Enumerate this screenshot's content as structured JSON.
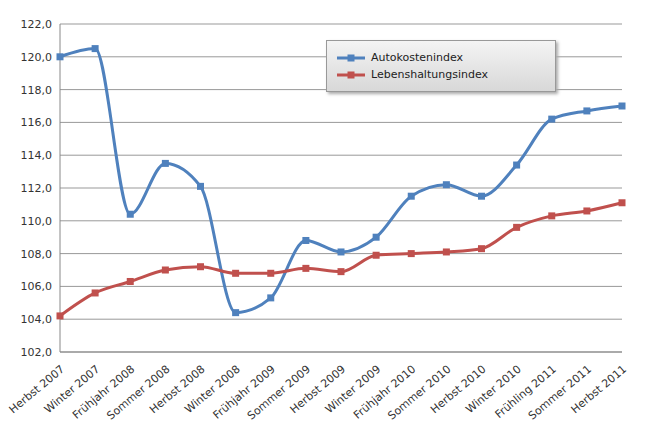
{
  "chart_data": {
    "type": "line",
    "categories": [
      "Herbst 2007",
      "Winter 2007",
      "Frühjahr 2008",
      "Sommer 2008",
      "Herbst 2008",
      "Winter 2008",
      "Frühjahr 2009",
      "Sommer 2009",
      "Herbst 2009",
      "Winter 2009",
      "Frühjahr 2010",
      "Sommer 2010",
      "Herbst 2010",
      "Winter 2010",
      "Frühling 2011",
      "Sommer 2011",
      "Herbst 2011"
    ],
    "series": [
      {
        "name": "Autokostenindex",
        "color": "#4f81bd",
        "values": [
          120.0,
          120.5,
          110.4,
          113.5,
          112.1,
          104.4,
          105.3,
          108.8,
          108.1,
          109.0,
          111.5,
          112.2,
          111.5,
          113.4,
          116.2,
          116.7,
          117.0
        ]
      },
      {
        "name": "Lebenshaltungsindex",
        "color": "#c0504d",
        "values": [
          104.2,
          105.6,
          106.3,
          107.0,
          107.2,
          106.8,
          106.8,
          107.1,
          106.9,
          107.9,
          108.0,
          108.1,
          108.3,
          109.6,
          110.3,
          110.6,
          111.1
        ]
      }
    ],
    "ylim": [
      102,
      122
    ],
    "yticks": [
      {
        "value": 102,
        "label": "102,0"
      },
      {
        "value": 104,
        "label": "104,0"
      },
      {
        "value": 106,
        "label": "106,0"
      },
      {
        "value": 108,
        "label": "108,0"
      },
      {
        "value": 110,
        "label": "110,0"
      },
      {
        "value": 112,
        "label": "112,0"
      },
      {
        "value": 114,
        "label": "114,0"
      },
      {
        "value": 116,
        "label": "116,0"
      },
      {
        "value": 118,
        "label": "118,0"
      },
      {
        "value": 120,
        "label": "120,0"
      },
      {
        "value": 122,
        "label": "122,0"
      }
    ],
    "grid": true,
    "legend": "top",
    "marker": "square"
  }
}
